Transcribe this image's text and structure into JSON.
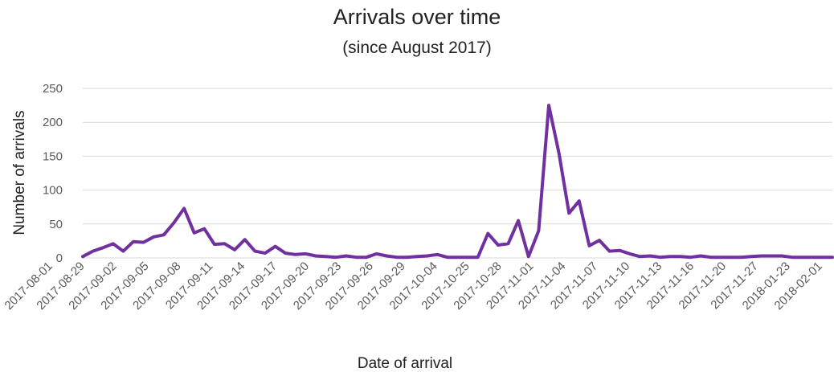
{
  "chart_data": {
    "type": "line",
    "title": "Arrivals over time",
    "subtitle": "(since August 2017)",
    "xlabel": "Date of arrival",
    "ylabel": "Number of arrivals",
    "ylim": [
      0,
      250
    ],
    "yticks": [
      0,
      50,
      100,
      150,
      200,
      250
    ],
    "grid": "horizontal",
    "legend": "none",
    "line_color": "#7030A0",
    "grid_color": "#D9D9D9",
    "x_tick_labels": [
      "2017-08-01",
      "2017-08-29",
      "2017-09-02",
      "2017-09-05",
      "2017-09-08",
      "2017-09-11",
      "2017-09-14",
      "2017-09-17",
      "2017-09-20",
      "2017-09-23",
      "2017-09-26",
      "2017-09-29",
      "2017-10-04",
      "2017-10-25",
      "2017-10-28",
      "2017-11-01",
      "2017-11-04",
      "2017-11-07",
      "2017-11-10",
      "2017-11-13",
      "2017-11-16",
      "2017-11-20",
      "2017-11-27",
      "2018-01-23",
      "2018-02-01"
    ],
    "values": [
      2,
      10,
      15,
      21,
      10,
      24,
      23,
      31,
      34,
      52,
      73,
      37,
      43,
      20,
      21,
      12,
      27,
      10,
      7,
      17,
      7,
      5,
      6,
      3,
      2,
      1,
      3,
      1,
      1,
      6,
      3,
      1,
      1,
      2,
      3,
      5,
      1,
      1,
      1,
      1,
      36,
      19,
      21,
      55,
      2,
      40,
      225,
      155,
      66,
      84,
      18,
      26,
      10,
      11,
      6,
      2,
      3,
      1,
      2,
      2,
      1,
      3,
      1,
      1,
      1,
      1,
      2,
      3,
      3,
      3,
      1,
      1,
      1,
      1,
      1
    ]
  }
}
